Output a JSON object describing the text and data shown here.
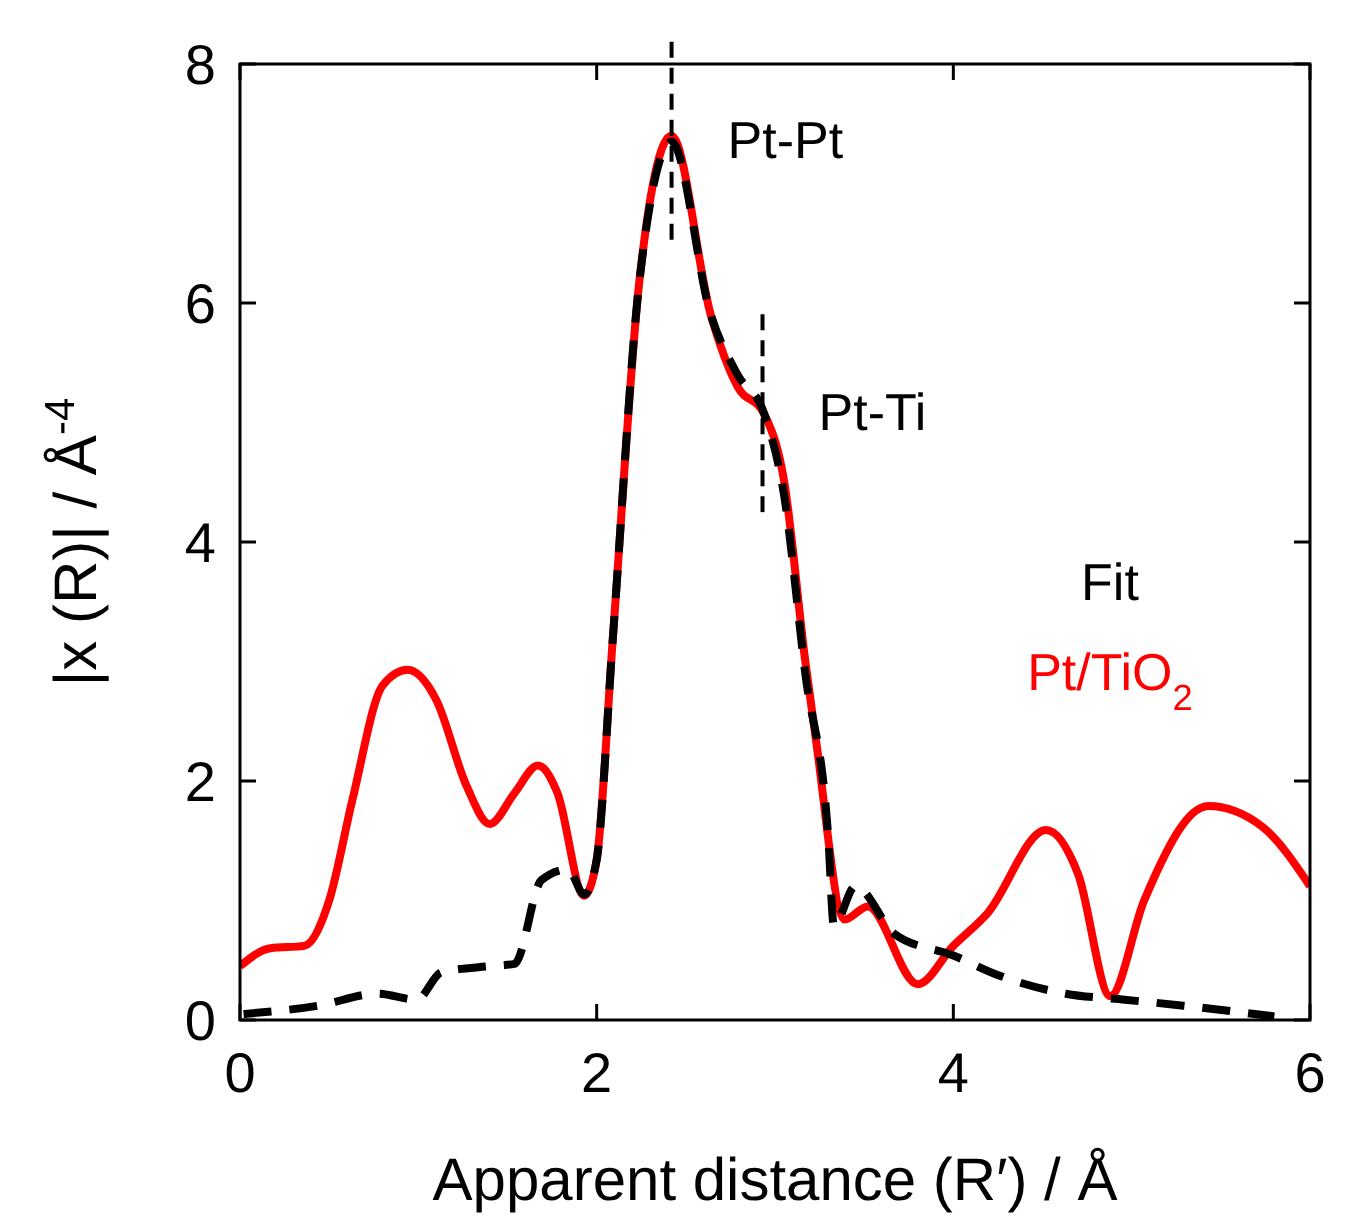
{
  "chart_data": {
    "type": "line",
    "xlabel": "Apparent distance (R′) / Å",
    "ylabel": "|x (R)| / Å$^{-4}$",
    "xlim": [
      0,
      6
    ],
    "ylim": [
      0,
      8
    ],
    "xticks": [
      0,
      2,
      4,
      6
    ],
    "yticks": [
      0,
      2,
      4,
      6,
      8
    ],
    "grid": false,
    "legend": "right",
    "marker": "none",
    "series": [
      {
        "name": "Fit",
        "color": "#000000",
        "line_style": "dashed",
        "x": [
          0.02,
          0.44,
          0.77,
          0.99,
          1.13,
          1.4,
          1.54,
          1.69,
          1.84,
          1.93,
          2.0,
          2.09,
          2.24,
          2.42,
          2.64,
          2.79,
          2.94,
          3.05,
          3.17,
          3.3,
          3.33,
          3.45,
          3.67,
          4.0,
          4.26,
          4.63,
          4.96,
          5.29,
          5.8
        ],
        "values": [
          0.05,
          0.12,
          0.22,
          0.17,
          0.4,
          0.45,
          0.47,
          1.17,
          1.26,
          1.05,
          1.34,
          3.18,
          6.19,
          7.35,
          5.9,
          5.4,
          5.07,
          4.4,
          2.9,
          1.5,
          0.79,
          1.12,
          0.72,
          0.54,
          0.37,
          0.22,
          0.17,
          0.12,
          0.03
        ]
      },
      {
        "name": "Pt/TiO$_{2}$",
        "color": "#ff0000",
        "line_style": "solid",
        "x": [
          0,
          0.17,
          0.36,
          0.5,
          0.63,
          0.8,
          0.94,
          1.1,
          1.27,
          1.4,
          1.54,
          1.67,
          1.78,
          1.93,
          2.0,
          2.09,
          2.24,
          2.42,
          2.64,
          2.79,
          2.94,
          3.05,
          3.17,
          3.23,
          3.39,
          3.52,
          3.8,
          4.0,
          4.19,
          4.52,
          4.7,
          4.88,
          5.07,
          5.43,
          5.73,
          6.0
        ],
        "values": [
          0.45,
          0.6,
          0.62,
          1.0,
          1.84,
          2.8,
          2.93,
          2.68,
          1.96,
          1.64,
          1.9,
          2.13,
          1.9,
          1.04,
          1.34,
          3.18,
          6.19,
          7.4,
          5.9,
          5.3,
          5.07,
          4.52,
          3.0,
          2.34,
          0.84,
          0.95,
          0.3,
          0.62,
          0.89,
          1.59,
          1.22,
          0.2,
          1.0,
          1.79,
          1.62,
          1.12
        ]
      }
    ],
    "annotations": [
      {
        "text": "Pt-Pt",
        "x": 2.42,
        "y": 7.35
      },
      {
        "text": "Pt-Ti",
        "x": 2.93,
        "y": 5.07
      }
    ]
  }
}
